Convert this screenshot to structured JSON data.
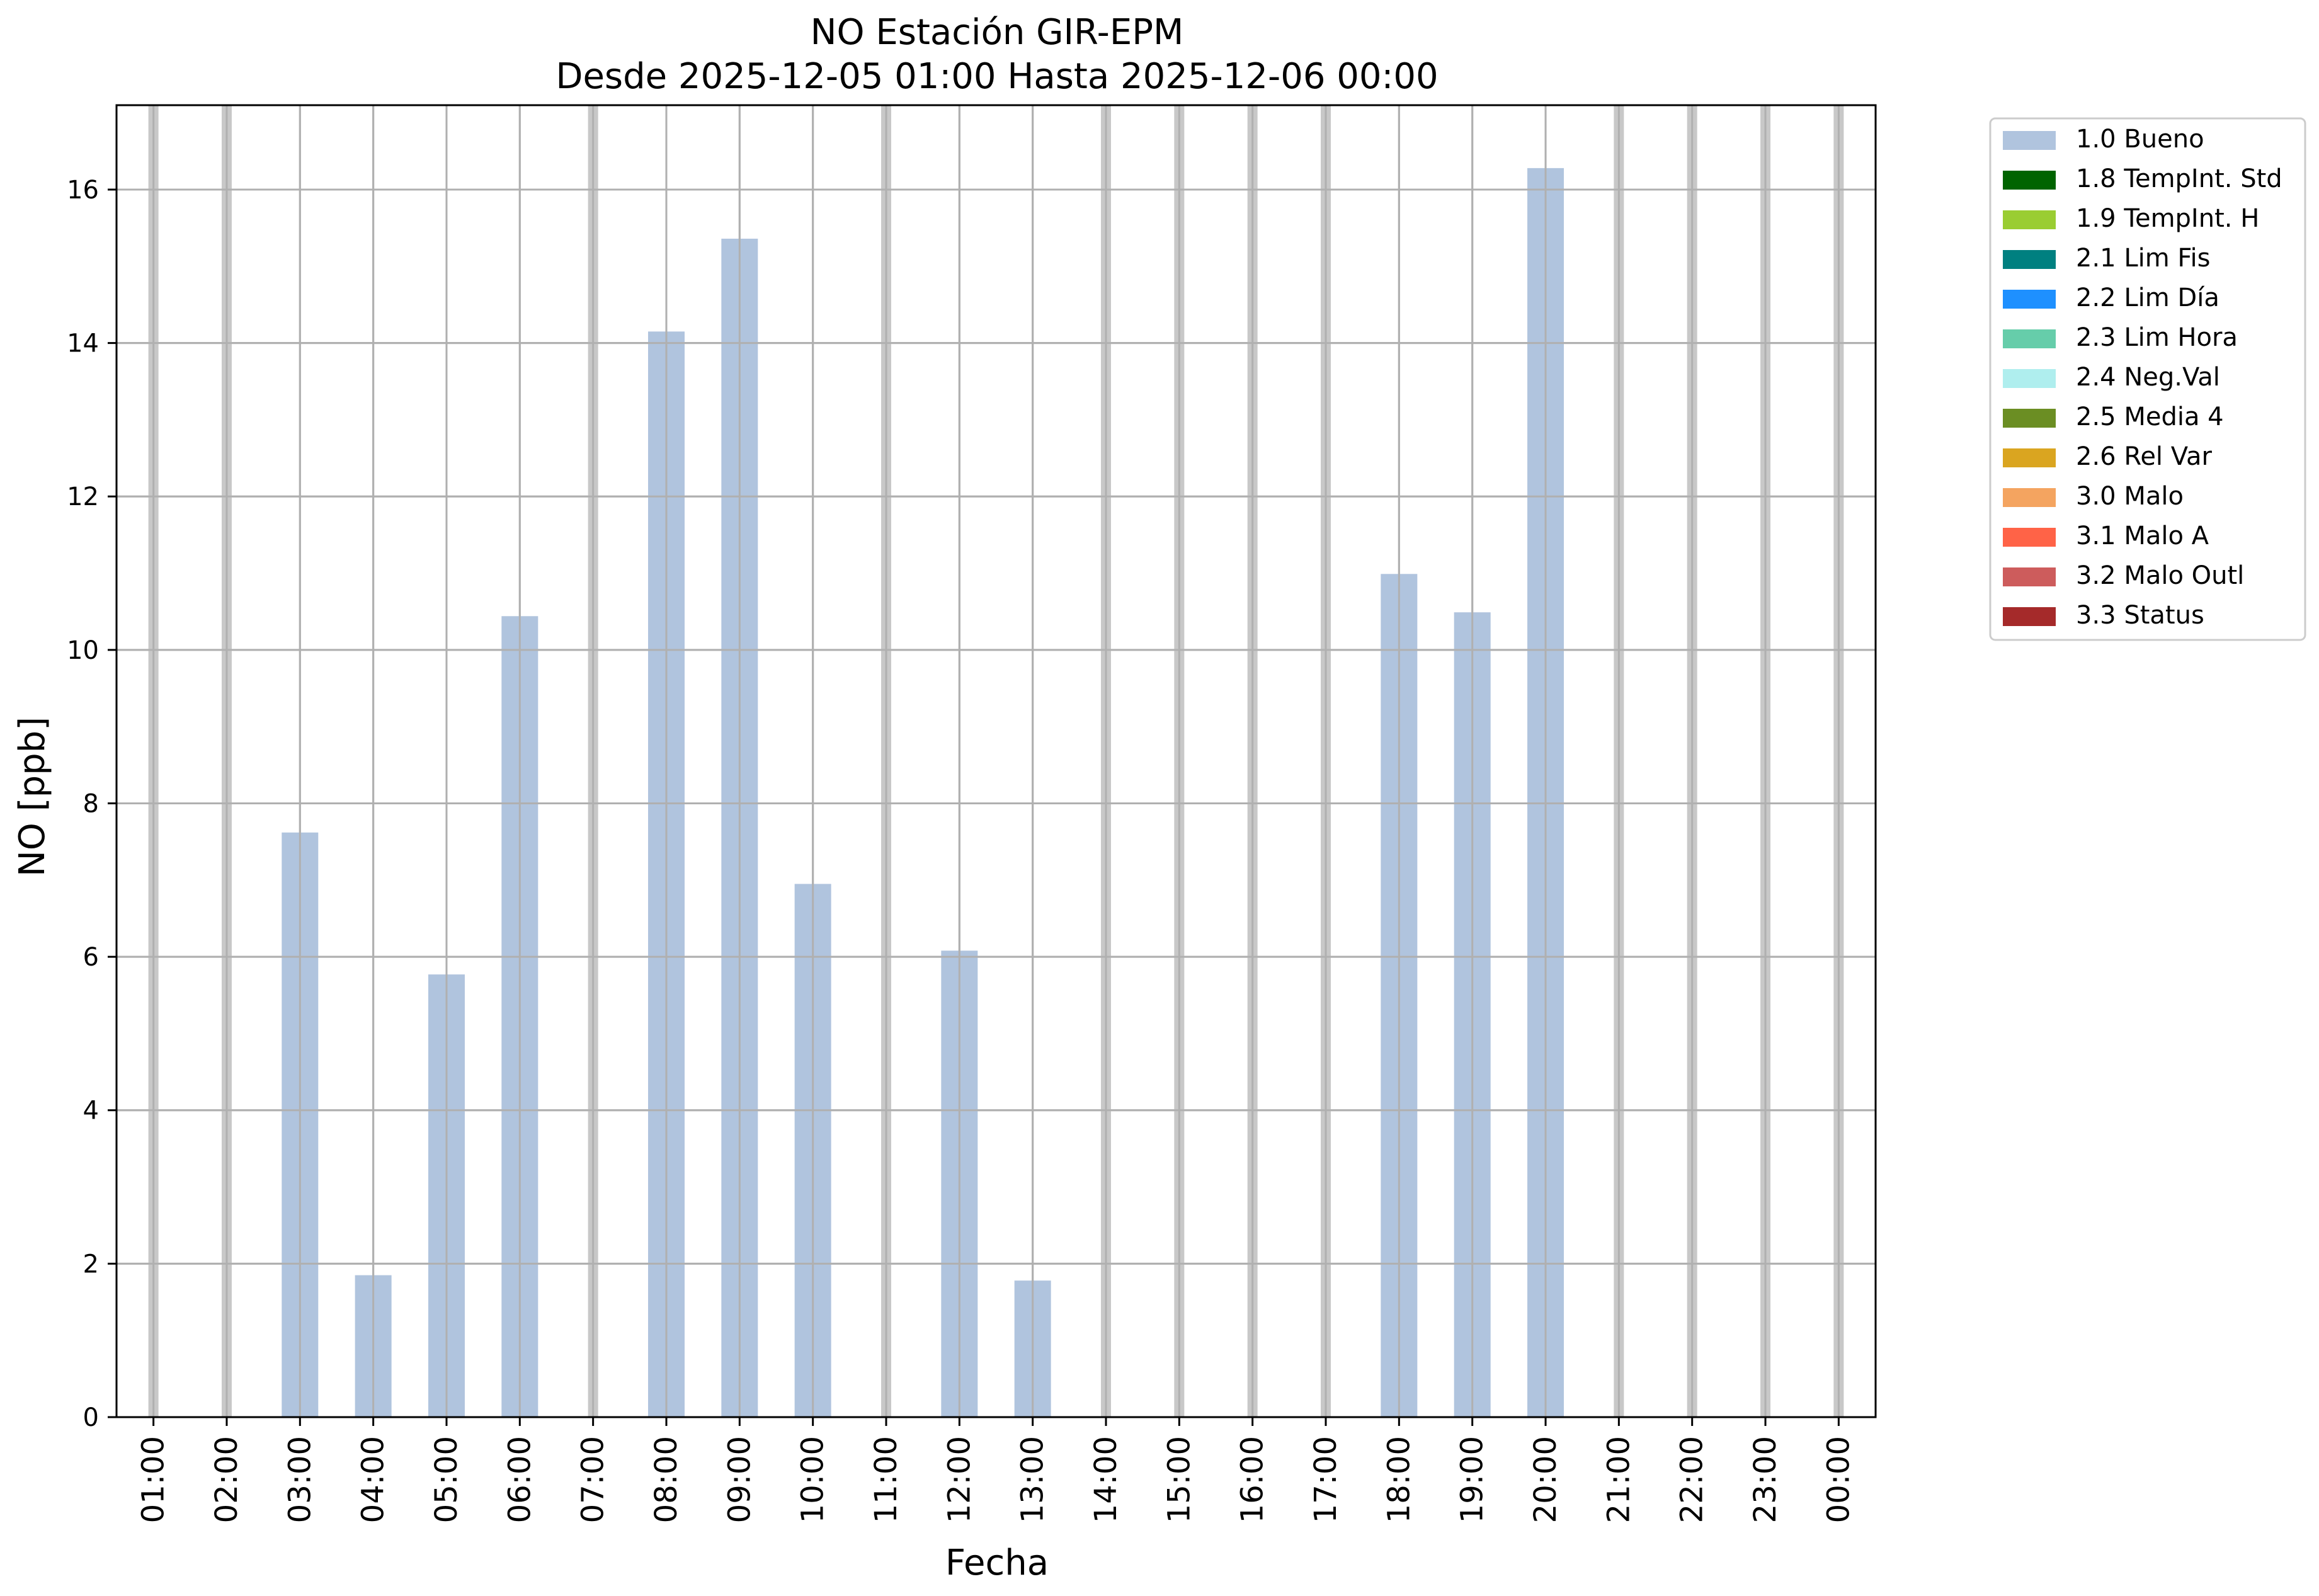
{
  "chart_data": {
    "type": "bar",
    "title": "NO Estación GIR-EPM",
    "subtitle": "Desde 2025-12-05 01:00 Hasta 2025-12-06 00:00",
    "xlabel": "Fecha",
    "ylabel": "NO [ppb]",
    "ylim": [
      0,
      17.1
    ],
    "yticks": [
      0,
      2,
      4,
      6,
      8,
      10,
      12,
      14,
      16
    ],
    "grid": true,
    "legend_position": "outside-top-right",
    "categories": [
      "01:00",
      "02:00",
      "03:00",
      "04:00",
      "05:00",
      "06:00",
      "07:00",
      "08:00",
      "09:00",
      "10:00",
      "11:00",
      "12:00",
      "13:00",
      "14:00",
      "15:00",
      "16:00",
      "17:00",
      "18:00",
      "19:00",
      "20:00",
      "21:00",
      "22:00",
      "23:00",
      "00:00"
    ],
    "series": [
      {
        "name": "1.0 Bueno",
        "color": "#b0c4de",
        "values": [
          null,
          null,
          7.62,
          1.85,
          5.77,
          10.44,
          null,
          14.15,
          15.36,
          6.95,
          null,
          6.08,
          1.78,
          null,
          null,
          null,
          null,
          10.99,
          10.49,
          16.28,
          null,
          null,
          null,
          null
        ]
      }
    ],
    "missing_markers": [
      "01:00",
      "02:00",
      "07:00",
      "11:00",
      "14:00",
      "15:00",
      "16:00",
      "17:00",
      "21:00",
      "22:00",
      "23:00",
      "00:00"
    ],
    "missing_marker_color": "#c8c8c8",
    "legend": [
      {
        "label": "1.0 Bueno",
        "color": "#b0c4de"
      },
      {
        "label": "1.8 TempInt. Std",
        "color": "#006400"
      },
      {
        "label": "1.9 TempInt. H",
        "color": "#9acd32"
      },
      {
        "label": "2.1 Lim Fis",
        "color": "#008080"
      },
      {
        "label": "2.2 Lim Día",
        "color": "#1e90ff"
      },
      {
        "label": "2.3 Lim Hora",
        "color": "#66cdaa"
      },
      {
        "label": "2.4 Neg.Val",
        "color": "#afeeee"
      },
      {
        "label": "2.5 Media 4",
        "color": "#6b8e23"
      },
      {
        "label": "2.6 Rel Var",
        "color": "#daa520"
      },
      {
        "label": "3.0 Malo",
        "color": "#f4a460"
      },
      {
        "label": "3.1 Malo A",
        "color": "#ff6347"
      },
      {
        "label": "3.2 Malo Outl",
        "color": "#cd5c5c"
      },
      {
        "label": "3.3 Status",
        "color": "#a52a2a"
      }
    ]
  }
}
